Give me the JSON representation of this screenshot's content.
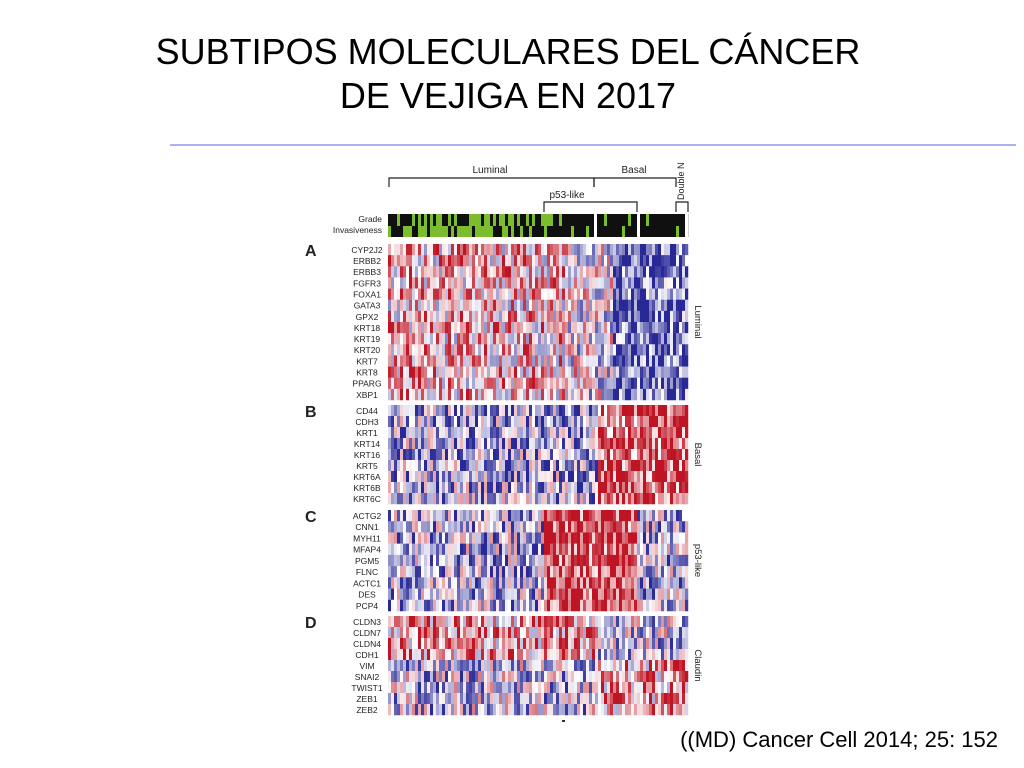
{
  "slide": {
    "title_line1": "SUBTIPOS MOLECULARES DEL CÁNCER",
    "title_line2": "DE VEJIGA EN 2017",
    "citation": "((MD) Cancer Cell 2014; 25: 152"
  },
  "figure": {
    "top_groups": {
      "luminal": "Luminal",
      "basal": "Basal",
      "p53": "p53-like",
      "double": "Double N"
    },
    "annotation_labels": [
      "Grade",
      "Invasiveness"
    ],
    "panels": [
      {
        "letter": "A",
        "side": "Luminal",
        "genes": [
          "CYP2J2",
          "ERBB2",
          "ERBB3",
          "FGFR3",
          "FOXA1",
          "GATA3",
          "GPX2",
          "KRT18",
          "KRT19",
          "KRT20",
          "KRT7",
          "KRT8",
          "PPARG",
          "XBP1"
        ]
      },
      {
        "letter": "B",
        "side": "Basal",
        "genes": [
          "CD44",
          "CDH3",
          "KRT1",
          "KRT14",
          "KRT16",
          "KRT5",
          "KRT6A",
          "KRT6B",
          "KRT6C"
        ]
      },
      {
        "letter": "C",
        "side": "p53-like",
        "genes": [
          "ACTG2",
          "CNN1",
          "MYH11",
          "MFAP4",
          "PGM5",
          "FLNC",
          "ACTC1",
          "DES",
          "PCP4"
        ]
      },
      {
        "letter": "D",
        "side": "Claudin",
        "genes": [
          "CLDN3",
          "CLDN7",
          "CLDN4",
          "CDH1",
          "VIM",
          "SNAI2",
          "TWIST1",
          "ZEB1",
          "ZEB2"
        ]
      }
    ]
  }
}
